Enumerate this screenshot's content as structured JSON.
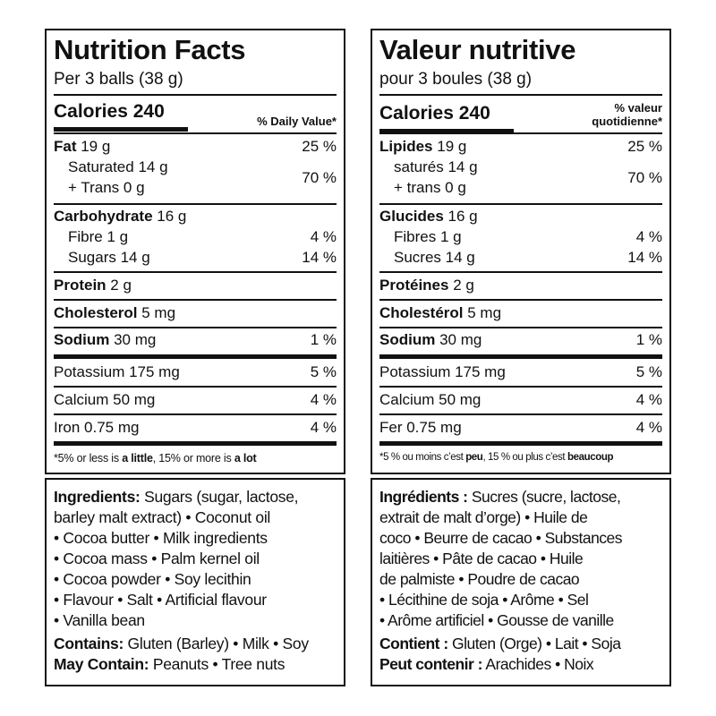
{
  "en": {
    "title": "Nutrition Facts",
    "serving": "Per 3 balls (38 g)",
    "calories_label": "Calories 240",
    "dv_header": [
      "% Daily Value*"
    ],
    "fat_label": "Fat",
    "fat_amount": " 19 g",
    "fat_pct": "25 %",
    "sat_label": "Saturated 14 g",
    "trans_label": "+ Trans 0 g",
    "sat_pct": "70 %",
    "carb_label": "Carbohydrate",
    "carb_amount": " 16 g",
    "fibre_label": "Fibre 1 g",
    "fibre_pct": "4 %",
    "sugars_label": "Sugars 14 g",
    "sugars_pct": "14 %",
    "protein_label": "Protein",
    "protein_amount": " 2 g",
    "chol_label": "Cholesterol",
    "chol_amount": " 5 mg",
    "sodium_label": "Sodium",
    "sodium_amount": " 30 mg",
    "sodium_pct": "1 %",
    "potassium_label": "Potassium 175 mg",
    "potassium_pct": "5 %",
    "calcium_label": "Calcium 50 mg",
    "calcium_pct": "4 %",
    "iron_label": "Iron 0.75 mg",
    "iron_pct": "4 %",
    "footnote_a": "*5% or less is ",
    "footnote_b": "a little",
    "footnote_c": ", 15% or more is ",
    "footnote_d": "a lot",
    "ingredients_label": "Ingredients:",
    "ingredients_lines": [
      " Sugars (sugar, lactose,",
      "barley malt extract) • Coconut oil",
      "• Cocoa butter • Milk ingredients",
      "• Cocoa mass • Palm kernel oil",
      "• Cocoa powder • Soy lecithin",
      "• Flavour • Salt • Artificial flavour",
      "• Vanilla bean"
    ],
    "contains_label": "Contains:",
    "contains_text": " Gluten (Barley) • Milk • Soy",
    "may_label": "May Contain:",
    "may_text": " Peanuts • Tree nuts"
  },
  "fr": {
    "title": "Valeur nutritive",
    "serving": "pour 3 boules (38 g)",
    "calories_label": "Calories 240",
    "dv_header": [
      "% valeur",
      "quotidienne*"
    ],
    "fat_label": "Lipides",
    "fat_amount": " 19 g",
    "fat_pct": "25 %",
    "sat_label": "saturés 14 g",
    "trans_label": "+ trans 0 g",
    "sat_pct": "70 %",
    "carb_label": "Glucides",
    "carb_amount": " 16 g",
    "fibre_label": "Fibres 1 g",
    "fibre_pct": "4 %",
    "sugars_label": "Sucres 14 g",
    "sugars_pct": "14 %",
    "protein_label": "Protéines",
    "protein_amount": " 2 g",
    "chol_label": "Cholestérol",
    "chol_amount": " 5 mg",
    "sodium_label": "Sodium",
    "sodium_amount": " 30 mg",
    "sodium_pct": "1 %",
    "potassium_label": "Potassium 175 mg",
    "potassium_pct": "5 %",
    "calcium_label": "Calcium 50 mg",
    "calcium_pct": "4 %",
    "iron_label": "Fer 0.75 mg",
    "iron_pct": "4 %",
    "footnote_a": "*5 % ou moins c’est ",
    "footnote_b": "peu",
    "footnote_c": ", 15 % ou plus c’est ",
    "footnote_d": "beaucoup",
    "ingredients_label": "Ingrédients :",
    "ingredients_lines": [
      " Sucres (sucre, lactose,",
      "extrait de malt d’orge) • Huile de",
      "coco • Beurre de cacao • Substances",
      "laitières • Pâte de cacao • Huile",
      "de palmiste • Poudre de cacao",
      "• Lécithine de soja • Arôme • Sel",
      "• Arôme artificiel • Gousse de vanille"
    ],
    "contains_label": "Contient :",
    "contains_text": " Gluten (Orge) • Lait • Soja",
    "may_label": "Peut contenir :",
    "may_text": " Arachides • Noix"
  }
}
